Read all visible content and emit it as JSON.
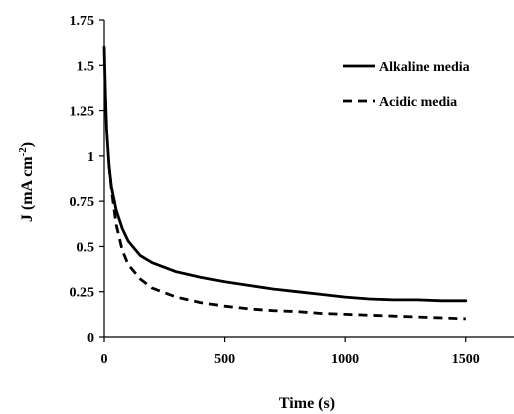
{
  "chart_data": {
    "type": "line",
    "xlabel": "Time (s)",
    "ylabel": {
      "main": "J (mA cm",
      "sup": "-2",
      "close": ")"
    },
    "xlim": [
      0,
      1700
    ],
    "ylim": [
      0,
      1.75
    ],
    "xticks": [
      0,
      500,
      1000,
      1500
    ],
    "xtick_labels": [
      "0",
      "500",
      "1000",
      "1500"
    ],
    "yticks": [
      0,
      0.25,
      0.5,
      0.75,
      1,
      1.25,
      1.5,
      1.75
    ],
    "ytick_labels": [
      "0",
      "0.25",
      "0.5",
      "0.75",
      "1",
      "1.25",
      "1.5",
      "1.75"
    ],
    "grid": false,
    "legend_position": "top-right",
    "series": [
      {
        "name": "Alkaline media",
        "style": "solid",
        "color": "#000000",
        "x": [
          0,
          5,
          10,
          20,
          30,
          50,
          75,
          100,
          150,
          200,
          300,
          400,
          500,
          600,
          700,
          800,
          900,
          1000,
          1100,
          1200,
          1300,
          1400,
          1500
        ],
        "y": [
          1.6,
          1.35,
          1.15,
          0.95,
          0.83,
          0.7,
          0.6,
          0.53,
          0.45,
          0.41,
          0.36,
          0.33,
          0.305,
          0.285,
          0.265,
          0.25,
          0.235,
          0.22,
          0.21,
          0.205,
          0.205,
          0.2,
          0.2
        ]
      },
      {
        "name": "Acidic media",
        "style": "dashed",
        "color": "#000000",
        "x": [
          20,
          30,
          40,
          50,
          75,
          100,
          150,
          200,
          300,
          400,
          500,
          600,
          700,
          800,
          900,
          1000,
          1100,
          1200,
          1300,
          1400,
          1500
        ],
        "y": [
          0.95,
          0.82,
          0.72,
          0.62,
          0.48,
          0.4,
          0.32,
          0.27,
          0.22,
          0.19,
          0.17,
          0.155,
          0.145,
          0.14,
          0.13,
          0.125,
          0.12,
          0.115,
          0.11,
          0.105,
          0.1
        ]
      }
    ]
  }
}
